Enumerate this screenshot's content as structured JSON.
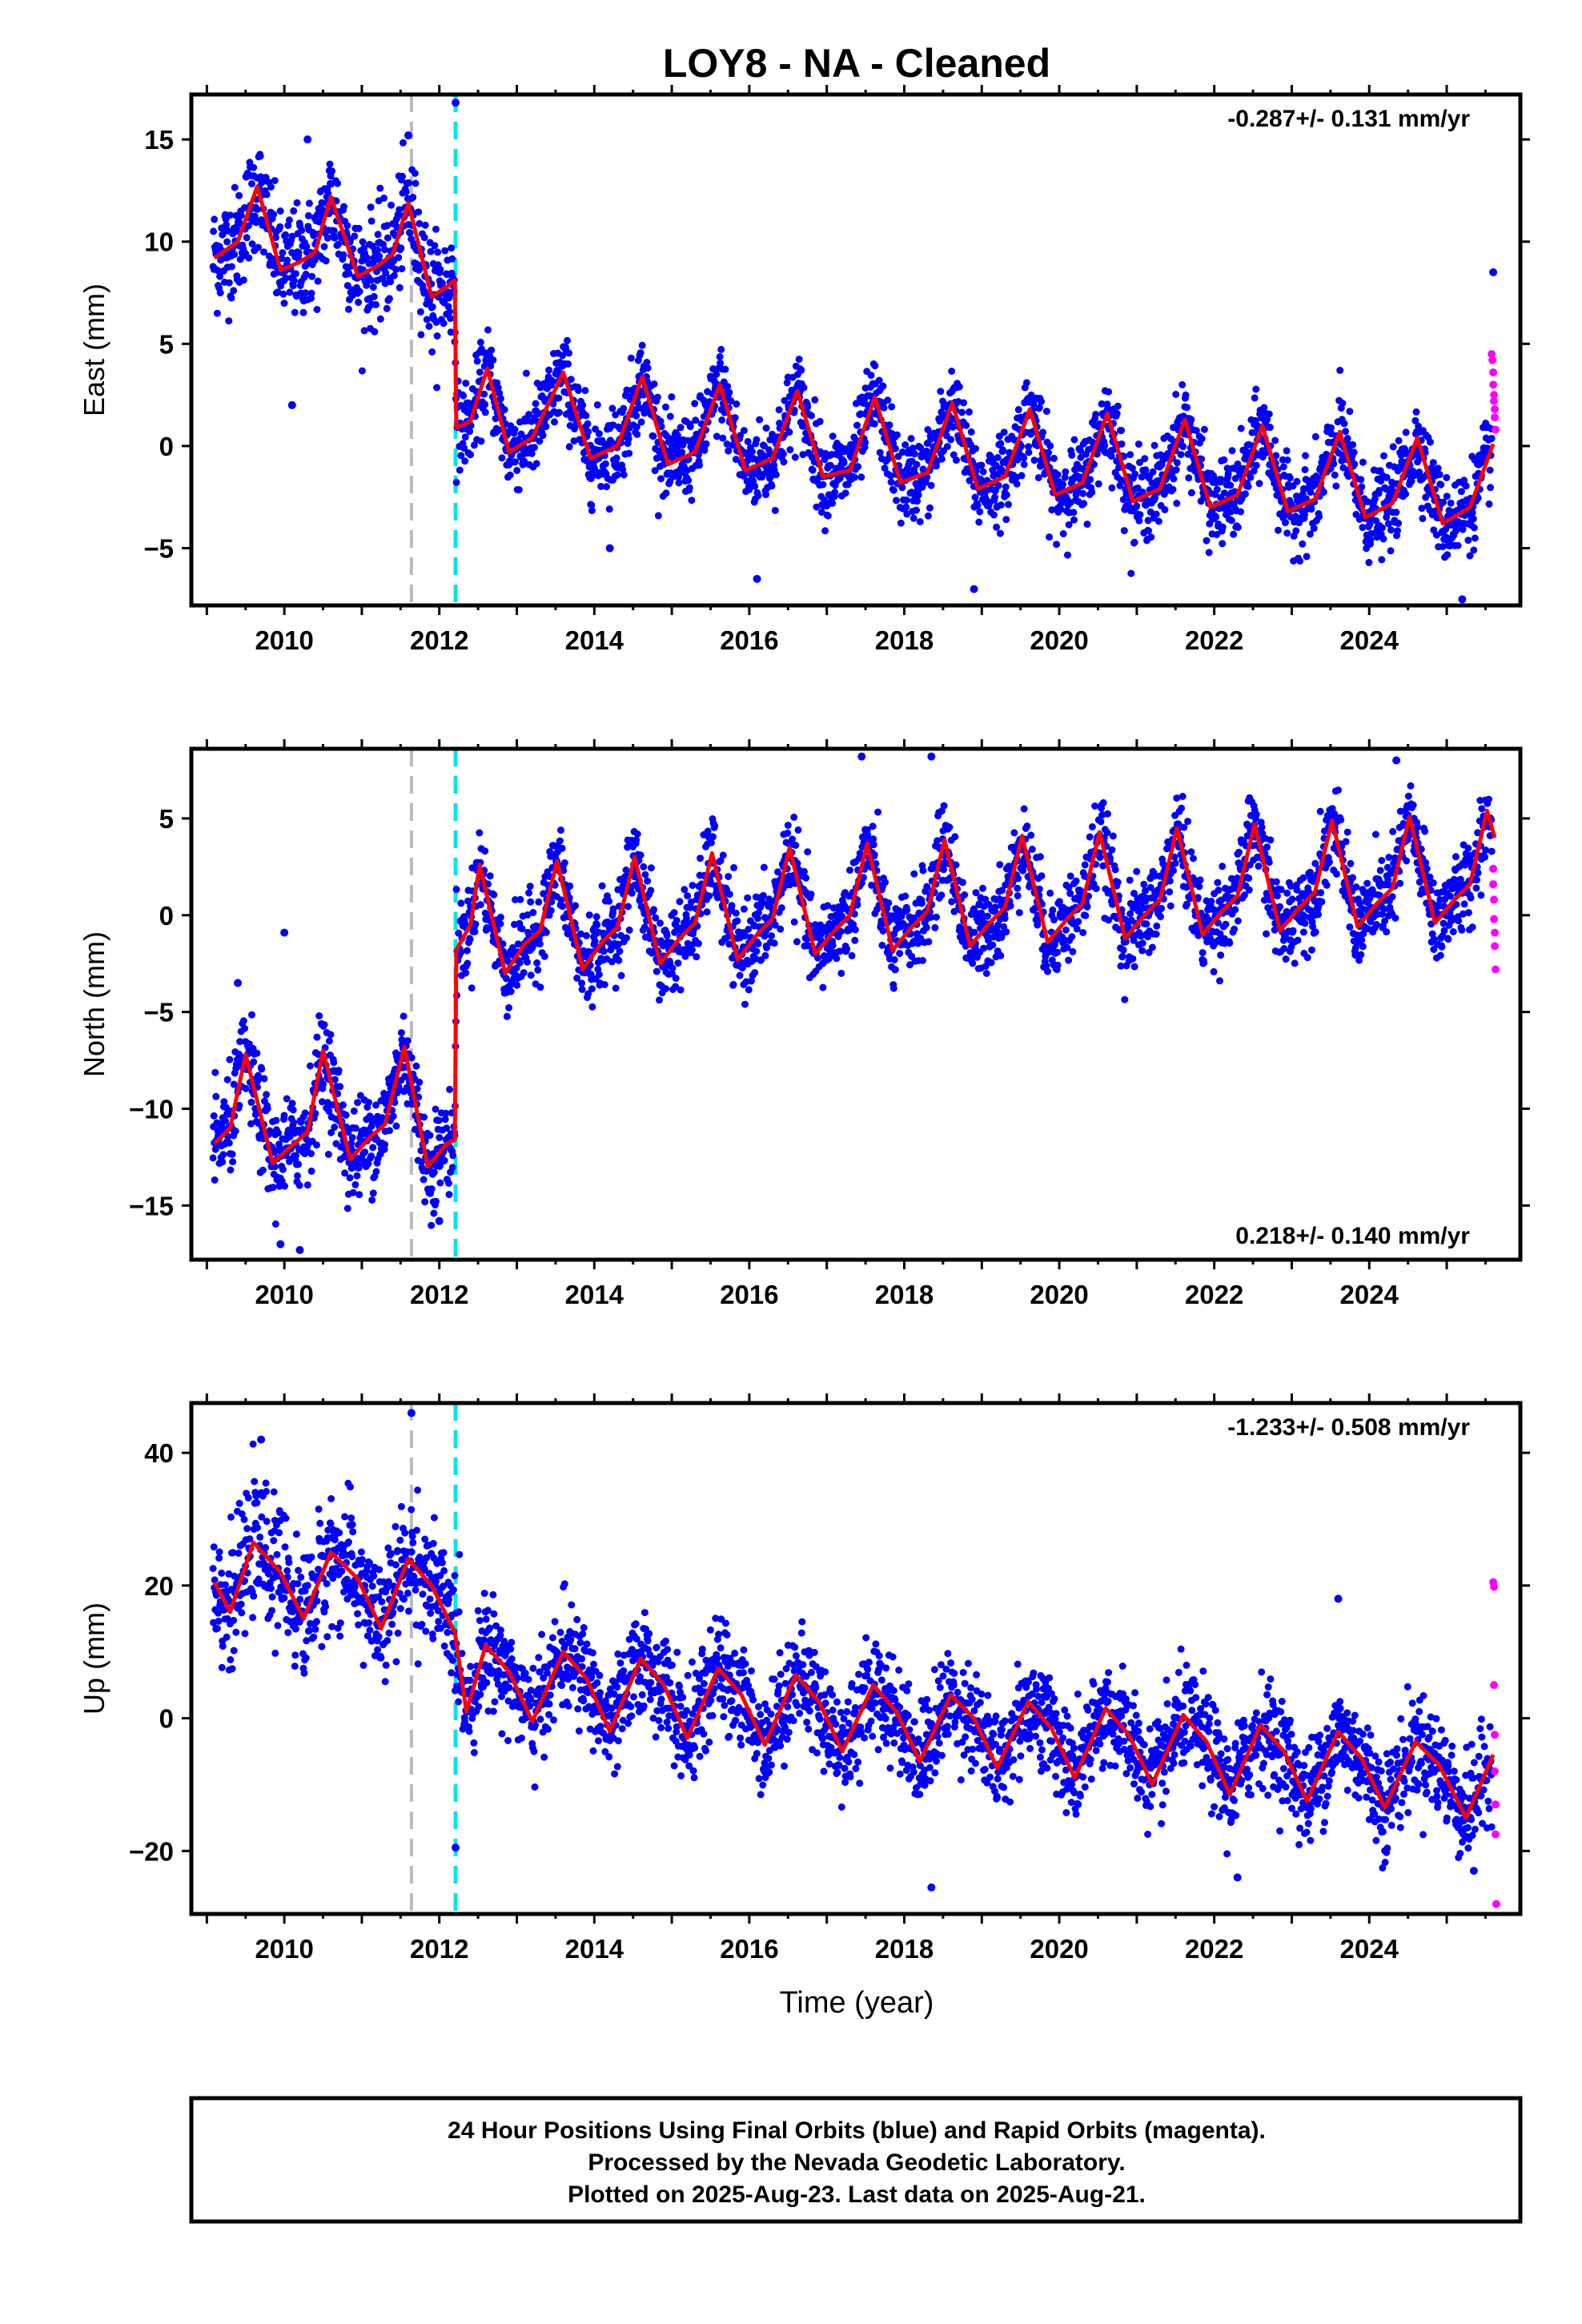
{
  "title": "LOY8  - NA - Cleaned",
  "xlabel": "Time (year)",
  "footer": [
    "24 Hour Positions Using Final Orbits (blue) and Rapid Orbits (magenta).",
    "Processed by the Nevada Geodetic Laboratory.",
    "Plotted on 2025-Aug-23. Last data on 2025-Aug-21."
  ],
  "colors": {
    "final": "#0000ff",
    "rapid": "#ff00ff",
    "model": "#ff0000",
    "equipment_change": "#bbbbbb",
    "earthquake": "#00e5e5",
    "frame": "#000000"
  },
  "chart_data": [
    {
      "type": "scatter",
      "ylabel": "East (mm)",
      "rate_text": "-0.287+/- 0.131 mm/yr",
      "xlim": [
        2008.8,
        2025.95
      ],
      "ylim": [
        -7.8,
        17.2
      ],
      "x_ticks": [
        2010,
        2012,
        2014,
        2016,
        2018,
        2020,
        2022,
        2024
      ],
      "y_ticks": [
        -5,
        0,
        5,
        10,
        15
      ],
      "vlines": {
        "gray": 2011.64,
        "cyan": 2012.21
      },
      "model": {
        "series": "red line",
        "points": [
          [
            2009.1,
            9.2
          ],
          [
            2009.4,
            10.0
          ],
          [
            2009.65,
            12.7
          ],
          [
            2009.95,
            8.6
          ],
          [
            2010.2,
            9.0
          ],
          [
            2010.4,
            9.5
          ],
          [
            2010.6,
            12.2
          ],
          [
            2010.95,
            8.3
          ],
          [
            2011.2,
            8.8
          ],
          [
            2011.4,
            9.4
          ],
          [
            2011.6,
            11.9
          ],
          [
            2011.9,
            7.3
          ],
          [
            2012.1,
            7.8
          ],
          [
            2012.2,
            8.1
          ],
          [
            2012.22,
            0.9
          ],
          [
            2012.4,
            1.2
          ],
          [
            2012.62,
            3.8
          ],
          [
            2012.9,
            -0.3
          ],
          [
            2013.2,
            0.4
          ],
          [
            2013.6,
            3.6
          ],
          [
            2013.95,
            -0.6
          ],
          [
            2014.3,
            0.0
          ],
          [
            2014.62,
            3.4
          ],
          [
            2014.95,
            -0.9
          ],
          [
            2015.3,
            -0.3
          ],
          [
            2015.62,
            3.0
          ],
          [
            2015.95,
            -1.2
          ],
          [
            2016.3,
            -0.6
          ],
          [
            2016.62,
            2.7
          ],
          [
            2016.95,
            -1.5
          ],
          [
            2017.3,
            -1.2
          ],
          [
            2017.62,
            2.4
          ],
          [
            2017.95,
            -1.8
          ],
          [
            2018.3,
            -1.3
          ],
          [
            2018.62,
            2.1
          ],
          [
            2018.95,
            -2.1
          ],
          [
            2019.3,
            -1.5
          ],
          [
            2019.62,
            1.8
          ],
          [
            2019.95,
            -2.4
          ],
          [
            2020.3,
            -1.8
          ],
          [
            2020.62,
            1.6
          ],
          [
            2020.95,
            -2.7
          ],
          [
            2021.3,
            -2.1
          ],
          [
            2021.62,
            1.3
          ],
          [
            2021.95,
            -3.0
          ],
          [
            2022.3,
            -2.4
          ],
          [
            2022.62,
            1.0
          ],
          [
            2022.95,
            -3.2
          ],
          [
            2023.3,
            -2.6
          ],
          [
            2023.62,
            0.7
          ],
          [
            2023.95,
            -3.5
          ],
          [
            2024.3,
            -2.8
          ],
          [
            2024.62,
            0.4
          ],
          [
            2024.95,
            -3.8
          ],
          [
            2025.3,
            -3.0
          ],
          [
            2025.6,
            0.1
          ]
        ]
      },
      "final_points_approx": {
        "pre_2012_2_mean": 10.0,
        "pre_2012_2_scatter": 1.6,
        "post_2012_2_mean_start": 0.9,
        "post_2012_2_mean_end": -2.0,
        "post_scatter": 1.2,
        "outliers": [
          [
            2010.1,
            2.0
          ],
          [
            2010.3,
            15.0
          ],
          [
            2011.6,
            15.2
          ],
          [
            2012.21,
            16.8
          ],
          [
            2014.2,
            -5.0
          ],
          [
            2016.1,
            -6.5
          ],
          [
            2018.9,
            -7.0
          ],
          [
            2025.2,
            -7.5
          ],
          [
            2025.6,
            8.5
          ]
        ]
      },
      "rapid_points": [
        [
          2025.58,
          4.5
        ],
        [
          2025.59,
          4.2
        ],
        [
          2025.6,
          3.6
        ],
        [
          2025.6,
          3.0
        ],
        [
          2025.61,
          2.5
        ],
        [
          2025.61,
          2.2
        ],
        [
          2025.62,
          1.8
        ],
        [
          2025.62,
          1.4
        ],
        [
          2025.63,
          0.8
        ]
      ]
    },
    {
      "type": "scatter",
      "ylabel": "North (mm)",
      "rate_text": "0.218+/- 0.140 mm/yr",
      "xlim": [
        2008.8,
        2025.95
      ],
      "ylim": [
        -17.8,
        8.6
      ],
      "x_ticks": [
        2010,
        2012,
        2014,
        2016,
        2018,
        2020,
        2022,
        2024
      ],
      "y_ticks": [
        -15,
        -10,
        -5,
        0,
        5
      ],
      "vlines": {
        "gray": 2011.64,
        "cyan": 2012.21
      },
      "model": {
        "series": "red line",
        "points": [
          [
            2009.1,
            -11.8
          ],
          [
            2009.3,
            -11.0
          ],
          [
            2009.5,
            -7.2
          ],
          [
            2009.85,
            -12.8
          ],
          [
            2010.1,
            -11.9
          ],
          [
            2010.3,
            -11.2
          ],
          [
            2010.5,
            -7.0
          ],
          [
            2010.85,
            -12.6
          ],
          [
            2011.1,
            -11.5
          ],
          [
            2011.3,
            -10.8
          ],
          [
            2011.55,
            -6.8
          ],
          [
            2011.85,
            -13.0
          ],
          [
            2012.1,
            -11.8
          ],
          [
            2012.2,
            -11.6
          ],
          [
            2012.22,
            -1.8
          ],
          [
            2012.4,
            -0.5
          ],
          [
            2012.52,
            2.6
          ],
          [
            2012.85,
            -3.0
          ],
          [
            2013.1,
            -1.5
          ],
          [
            2013.3,
            -0.8
          ],
          [
            2013.52,
            2.8
          ],
          [
            2013.85,
            -2.8
          ],
          [
            2014.1,
            -1.4
          ],
          [
            2014.3,
            -0.6
          ],
          [
            2014.52,
            3.0
          ],
          [
            2014.85,
            -2.5
          ],
          [
            2015.1,
            -1.2
          ],
          [
            2015.3,
            -0.4
          ],
          [
            2015.52,
            3.2
          ],
          [
            2015.85,
            -2.3
          ],
          [
            2016.1,
            -1.0
          ],
          [
            2016.3,
            -0.2
          ],
          [
            2016.52,
            3.5
          ],
          [
            2016.85,
            -2.0
          ],
          [
            2017.1,
            -0.8
          ],
          [
            2017.3,
            0.0
          ],
          [
            2017.52,
            3.7
          ],
          [
            2017.85,
            -1.8
          ],
          [
            2018.1,
            -0.6
          ],
          [
            2018.3,
            0.2
          ],
          [
            2018.52,
            3.9
          ],
          [
            2018.85,
            -1.6
          ],
          [
            2019.1,
            -0.4
          ],
          [
            2019.3,
            0.4
          ],
          [
            2019.52,
            4.1
          ],
          [
            2019.85,
            -1.4
          ],
          [
            2020.1,
            -0.2
          ],
          [
            2020.3,
            0.6
          ],
          [
            2020.52,
            4.3
          ],
          [
            2020.85,
            -1.2
          ],
          [
            2021.1,
            0.0
          ],
          [
            2021.3,
            0.8
          ],
          [
            2021.52,
            4.5
          ],
          [
            2021.85,
            -1.0
          ],
          [
            2022.1,
            0.2
          ],
          [
            2022.3,
            1.0
          ],
          [
            2022.52,
            4.7
          ],
          [
            2022.85,
            -0.8
          ],
          [
            2023.1,
            0.4
          ],
          [
            2023.3,
            1.2
          ],
          [
            2023.52,
            4.9
          ],
          [
            2023.85,
            -0.6
          ],
          [
            2024.1,
            0.6
          ],
          [
            2024.3,
            1.4
          ],
          [
            2024.52,
            5.1
          ],
          [
            2024.85,
            -0.4
          ],
          [
            2025.1,
            0.8
          ],
          [
            2025.3,
            1.6
          ],
          [
            2025.52,
            5.4
          ],
          [
            2025.62,
            4.0
          ]
        ]
      },
      "final_points_approx": {
        "pre_2012_2_mean": -11.0,
        "pre_2012_2_scatter": 1.5,
        "post_2012_2_mean_start": -1.0,
        "post_2012_2_mean_end": 1.8,
        "post_scatter": 1.3,
        "outliers": [
          [
            2009.4,
            -3.5
          ],
          [
            2009.95,
            -17.0
          ],
          [
            2010.0,
            -0.9
          ],
          [
            2010.2,
            -17.3
          ],
          [
            2012.0,
            -15.8
          ],
          [
            2017.45,
            8.2
          ],
          [
            2018.35,
            8.2
          ],
          [
            2024.35,
            8.0
          ]
        ]
      },
      "rapid_points": [
        [
          2025.6,
          2.4
        ],
        [
          2025.6,
          1.6
        ],
        [
          2025.61,
          0.8
        ],
        [
          2025.61,
          -0.2
        ],
        [
          2025.62,
          -0.9
        ],
        [
          2025.62,
          -1.6
        ],
        [
          2025.63,
          -2.8
        ]
      ]
    },
    {
      "type": "scatter",
      "ylabel": "Up (mm)",
      "rate_text": "-1.233+/- 0.508 mm/yr",
      "xlim": [
        2008.8,
        2025.95
      ],
      "ylim": [
        -29.5,
        47.5
      ],
      "x_ticks": [
        2010,
        2012,
        2014,
        2016,
        2018,
        2020,
        2022,
        2024
      ],
      "y_ticks": [
        -20,
        0,
        20,
        40
      ],
      "vlines": {
        "gray": 2011.64,
        "cyan": 2012.21
      },
      "model": {
        "series": "red line",
        "points": [
          [
            2009.1,
            20.5
          ],
          [
            2009.3,
            16.0
          ],
          [
            2009.6,
            26.5
          ],
          [
            2009.95,
            22.0
          ],
          [
            2010.25,
            15.0
          ],
          [
            2010.6,
            25.0
          ],
          [
            2010.95,
            21.0
          ],
          [
            2011.25,
            13.5
          ],
          [
            2011.6,
            24.0
          ],
          [
            2011.9,
            20.0
          ],
          [
            2012.2,
            13.0
          ],
          [
            2012.35,
            1.0
          ],
          [
            2012.6,
            11.0
          ],
          [
            2012.9,
            7.0
          ],
          [
            2013.2,
            -0.5
          ],
          [
            2013.6,
            10.0
          ],
          [
            2013.9,
            6.0
          ],
          [
            2014.2,
            -2.0
          ],
          [
            2014.6,
            9.0
          ],
          [
            2014.9,
            5.0
          ],
          [
            2015.2,
            -3.0
          ],
          [
            2015.6,
            7.5
          ],
          [
            2015.9,
            3.5
          ],
          [
            2016.2,
            -4.0
          ],
          [
            2016.6,
            6.5
          ],
          [
            2016.9,
            2.5
          ],
          [
            2017.2,
            -5.0
          ],
          [
            2017.6,
            5.0
          ],
          [
            2017.9,
            1.0
          ],
          [
            2018.2,
            -6.5
          ],
          [
            2018.6,
            3.5
          ],
          [
            2018.9,
            0.0
          ],
          [
            2019.2,
            -7.5
          ],
          [
            2019.6,
            2.5
          ],
          [
            2019.9,
            -1.5
          ],
          [
            2020.2,
            -9.0
          ],
          [
            2020.6,
            1.5
          ],
          [
            2020.9,
            -2.5
          ],
          [
            2021.2,
            -10.0
          ],
          [
            2021.6,
            0.5
          ],
          [
            2021.9,
            -3.5
          ],
          [
            2022.2,
            -11.5
          ],
          [
            2022.6,
            -1.0
          ],
          [
            2022.9,
            -5.0
          ],
          [
            2023.2,
            -12.5
          ],
          [
            2023.6,
            -2.0
          ],
          [
            2023.9,
            -6.0
          ],
          [
            2024.2,
            -13.5
          ],
          [
            2024.6,
            -3.5
          ],
          [
            2024.9,
            -7.0
          ],
          [
            2025.25,
            -15.0
          ],
          [
            2025.6,
            -5.5
          ]
        ]
      },
      "final_points_approx": {
        "pre_2012_2_mean": 20.0,
        "pre_2012_2_scatter": 5.5,
        "post_2012_2_mean_start": 6.0,
        "post_2012_2_mean_end": -9.5,
        "post_scatter": 4.5,
        "outliers": [
          [
            2009.7,
            42.0
          ],
          [
            2011.64,
            46.0
          ],
          [
            2012.21,
            -19.5
          ],
          [
            2018.35,
            -25.5
          ],
          [
            2022.3,
            -24.0
          ],
          [
            2023.6,
            18.0
          ],
          [
            2025.35,
            -23.0
          ]
        ]
      },
      "rapid_points": [
        [
          2025.6,
          20.5
        ],
        [
          2025.61,
          19.8
        ],
        [
          2025.61,
          5.0
        ],
        [
          2025.62,
          -2.5
        ],
        [
          2025.62,
          -8.0
        ],
        [
          2025.63,
          -13.0
        ],
        [
          2025.63,
          -17.5
        ],
        [
          2025.64,
          -28.0
        ]
      ]
    }
  ]
}
